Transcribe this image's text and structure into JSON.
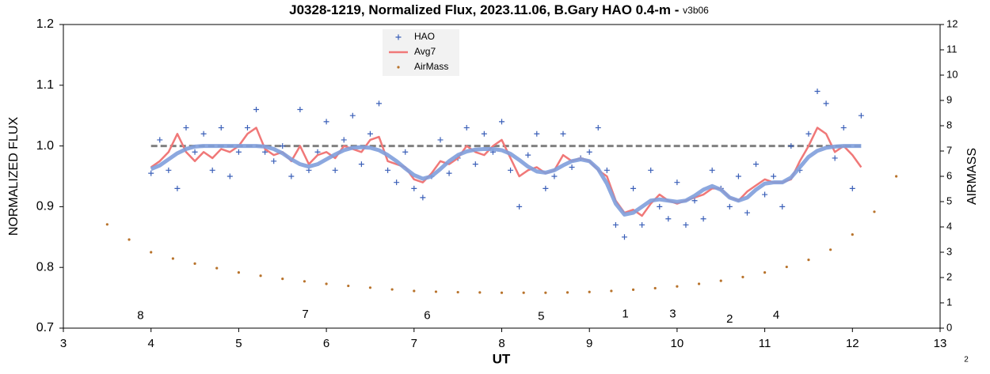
{
  "chart_data": {
    "type": "combo",
    "title": "J0328-1219, Normalized Flux, 2023.11.06, B.Gary HAO 0.4-m - ",
    "version": "v3b06",
    "xlabel": "UT",
    "ylabel": "NORMALIZED FLUX",
    "y2label": "AIRMASS",
    "page_number": "2",
    "xlim": [
      3,
      13
    ],
    "xticks": [
      3,
      4,
      5,
      6,
      7,
      8,
      9,
      10,
      11,
      12,
      13
    ],
    "ylim": [
      0.7,
      1.2
    ],
    "yticks": [
      0.7,
      0.8,
      0.9,
      {
        "value": 1,
        "label": "1.0"
      },
      1.1,
      1.2
    ],
    "y2lim": [
      0,
      12
    ],
    "y2ticks": [
      0,
      1,
      2,
      3,
      4,
      5,
      6,
      7,
      8,
      9,
      10,
      11,
      12
    ],
    "baseline": 1,
    "baseline_color": "#808080",
    "legend": "top-center",
    "x": [
      4.0,
      4.1,
      4.2,
      4.3,
      4.4,
      4.5,
      4.6,
      4.7,
      4.8,
      4.9,
      5.0,
      5.1,
      5.2,
      5.3,
      5.4,
      5.5,
      5.6,
      5.7,
      5.8,
      5.9,
      6.0,
      6.1,
      6.2,
      6.3,
      6.4,
      6.5,
      6.6,
      6.7,
      6.8,
      6.9,
      7.0,
      7.1,
      7.2,
      7.3,
      7.4,
      7.5,
      7.6,
      7.7,
      7.8,
      7.9,
      8.0,
      8.1,
      8.2,
      8.3,
      8.4,
      8.5,
      8.6,
      8.7,
      8.8,
      8.9,
      9.0,
      9.1,
      9.2,
      9.3,
      9.4,
      9.5,
      9.6,
      9.7,
      9.8,
      9.9,
      10.0,
      10.1,
      10.2,
      10.3,
      10.4,
      10.5,
      10.6,
      10.7,
      10.8,
      10.9,
      11.0,
      11.1,
      11.2,
      11.3,
      11.4,
      11.5,
      11.6,
      11.7,
      11.8,
      11.9,
      12.0,
      12.1
    ],
    "series": [
      {
        "type": "line",
        "color": "#7f9fdc",
        "width": 5,
        "values": [
          0.962,
          0.968,
          0.978,
          0.988,
          0.995,
          0.999,
          1,
          1,
          1,
          1,
          1,
          1,
          1,
          0.999,
          0.995,
          0.988,
          0.978,
          0.97,
          0.966,
          0.97,
          0.978,
          0.986,
          0.993,
          0.997,
          0.998,
          0.997,
          0.993,
          0.985,
          0.975,
          0.963,
          0.952,
          0.946,
          0.95,
          0.962,
          0.975,
          0.985,
          0.991,
          0.994,
          0.995,
          0.995,
          0.993,
          0.987,
          0.977,
          0.966,
          0.958,
          0.956,
          0.96,
          0.968,
          0.975,
          0.978,
          0.975,
          0.962,
          0.938,
          0.905,
          0.887,
          0.89,
          0.9,
          0.91,
          0.912,
          0.91,
          0.908,
          0.91,
          0.918,
          0.928,
          0.934,
          0.928,
          0.915,
          0.91,
          0.915,
          0.928,
          0.938,
          0.94,
          0.94,
          0.948,
          0.965,
          0.982,
          0.992,
          0.997,
          0.999,
          1,
          1,
          1
        ]
      },
      {
        "name": "HAO",
        "type": "scatter",
        "color": "#3a5fb8",
        "values": [
          0.955,
          1.01,
          0.96,
          0.93,
          1.03,
          0.99,
          1.02,
          0.96,
          1.03,
          0.95,
          0.99,
          1.03,
          1.06,
          0.99,
          0.975,
          1.0,
          0.95,
          1.06,
          0.96,
          0.99,
          1.04,
          0.96,
          1.01,
          1.05,
          0.97,
          1.02,
          1.07,
          0.96,
          0.94,
          0.99,
          0.93,
          0.915,
          0.95,
          1.01,
          0.955,
          0.98,
          1.03,
          0.97,
          1.02,
          0.99,
          1.04,
          0.96,
          0.9,
          0.985,
          1.02,
          0.93,
          0.95,
          1.02,
          0.965,
          0.98,
          0.99,
          1.03,
          0.96,
          0.87,
          0.85,
          0.93,
          0.87,
          0.96,
          0.9,
          0.88,
          0.94,
          0.87,
          0.91,
          0.88,
          0.96,
          0.93,
          0.9,
          0.95,
          0.89,
          0.97,
          0.92,
          0.95,
          0.9,
          1.0,
          0.96,
          1.02,
          1.09,
          1.07,
          0.98,
          1.03,
          0.93,
          1.05
        ]
      },
      {
        "name": "Avg7",
        "type": "line",
        "color": "#f07878",
        "width": 2.5,
        "values": [
          0.965,
          0.975,
          0.99,
          1.02,
          0.99,
          0.975,
          0.99,
          0.98,
          0.995,
          0.99,
          1.0,
          1.02,
          1.03,
          0.995,
          0.985,
          0.99,
          0.975,
          1.0,
          0.97,
          0.985,
          0.99,
          0.98,
          1.0,
          0.995,
          0.99,
          1.01,
          1.015,
          0.975,
          0.97,
          0.965,
          0.945,
          0.94,
          0.955,
          0.975,
          0.97,
          0.98,
          1.0,
          0.99,
          0.985,
          1.0,
          1.01,
          0.98,
          0.95,
          0.96,
          0.965,
          0.955,
          0.96,
          0.985,
          0.975,
          0.98,
          0.975,
          0.96,
          0.95,
          0.91,
          0.89,
          0.895,
          0.885,
          0.905,
          0.92,
          0.91,
          0.905,
          0.91,
          0.915,
          0.92,
          0.93,
          0.93,
          0.915,
          0.91,
          0.925,
          0.935,
          0.945,
          0.94,
          0.94,
          0.945,
          0.975,
          1.0,
          1.03,
          1.02,
          0.99,
          1.0,
          0.985,
          0.965
        ]
      },
      {
        "name": "AirMass",
        "type": "dots",
        "axis": "y2",
        "color": "#b8732c",
        "x": [
          3.5,
          3.75,
          4.0,
          4.25,
          4.5,
          4.75,
          5.0,
          5.25,
          5.5,
          5.75,
          6.0,
          6.25,
          6.5,
          6.75,
          7.0,
          7.25,
          7.5,
          7.75,
          8.0,
          8.25,
          8.5,
          8.75,
          9.0,
          9.25,
          9.5,
          9.75,
          10.0,
          10.25,
          10.5,
          10.75,
          11.0,
          11.25,
          11.5,
          11.75,
          12.0,
          12.25,
          12.5
        ],
        "values": [
          4.1,
          3.5,
          3.0,
          2.75,
          2.55,
          2.37,
          2.2,
          2.07,
          1.95,
          1.85,
          1.75,
          1.67,
          1.6,
          1.53,
          1.47,
          1.44,
          1.42,
          1.41,
          1.4,
          1.4,
          1.4,
          1.41,
          1.43,
          1.47,
          1.52,
          1.58,
          1.65,
          1.75,
          1.87,
          2.02,
          2.2,
          2.42,
          2.7,
          3.1,
          3.7,
          4.6,
          6.0
        ]
      }
    ],
    "annotations": [
      {
        "text": "8",
        "x": 3.88,
        "y": 0.72
      },
      {
        "text": "7",
        "x": 5.76,
        "y": 0.722
      },
      {
        "text": "6",
        "x": 7.15,
        "y": 0.72
      },
      {
        "text": "5",
        "x": 8.45,
        "y": 0.719
      },
      {
        "text": "1",
        "x": 9.41,
        "y": 0.723
      },
      {
        "text": "3",
        "x": 9.95,
        "y": 0.723
      },
      {
        "text": "2",
        "x": 10.6,
        "y": 0.714
      },
      {
        "text": "4",
        "x": 11.13,
        "y": 0.721
      }
    ]
  }
}
